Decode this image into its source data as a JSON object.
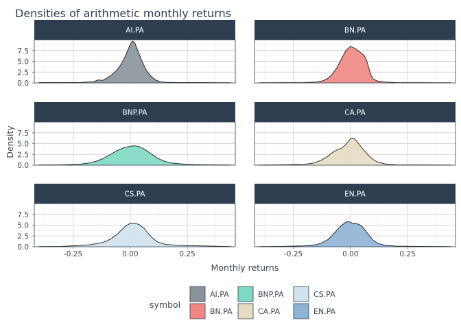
{
  "chart_data": {
    "type": "area",
    "chart_kind": "faceted density",
    "title": "Densities of arithmetic monthly returns",
    "xlabel": "Monthly returns",
    "ylabel": "Density",
    "xlim": [
      -0.42,
      0.46
    ],
    "ylim": [
      0,
      10
    ],
    "x_ticks": [
      -0.25,
      0.0,
      0.25
    ],
    "x_tick_labels": [
      "-0.25",
      "0.00",
      "0.25"
    ],
    "y_ticks": [
      0.0,
      2.5,
      5.0,
      7.5
    ],
    "y_tick_labels": [
      "0.0",
      "2.5",
      "5.0",
      "7.5"
    ],
    "grid": true,
    "facet_layout": {
      "rows": 3,
      "cols": 2
    },
    "legend": {
      "title": "symbol",
      "position": "bottom",
      "entries": [
        {
          "label": "AI.PA",
          "color": "#8a929b"
        },
        {
          "label": "BN.PA",
          "color": "#f08784"
        },
        {
          "label": "BNP.PA",
          "color": "#7fd8c4"
        },
        {
          "label": "CA.PA",
          "color": "#e6dcc2"
        },
        {
          "label": "CS.PA",
          "color": "#cfe2ed"
        },
        {
          "label": "EN.PA",
          "color": "#8eb3d5"
        }
      ]
    },
    "series": [
      {
        "name": "AI.PA",
        "color": "#8a929b",
        "x": [
          -0.4,
          -0.3,
          -0.22,
          -0.16,
          -0.14,
          -0.12,
          -0.1,
          -0.08,
          -0.06,
          -0.04,
          -0.02,
          0.0,
          0.01,
          0.02,
          0.03,
          0.05,
          0.07,
          0.09,
          0.11,
          0.13,
          0.16,
          0.2,
          0.3,
          0.44
        ],
        "y": [
          0.08,
          0.08,
          0.1,
          0.3,
          0.7,
          0.6,
          1.2,
          1.9,
          2.9,
          4.3,
          6.4,
          8.9,
          9.7,
          9.3,
          7.9,
          5.2,
          3.0,
          1.6,
          0.7,
          0.3,
          0.15,
          0.1,
          0.08,
          0.05
        ]
      },
      {
        "name": "BN.PA",
        "color": "#f08784",
        "x": [
          -0.4,
          -0.3,
          -0.2,
          -0.15,
          -0.12,
          -0.1,
          -0.08,
          -0.06,
          -0.04,
          -0.02,
          0.0,
          0.01,
          0.02,
          0.03,
          0.04,
          0.05,
          0.06,
          0.07,
          0.08,
          0.09,
          0.1,
          0.12,
          0.15,
          0.2,
          0.3,
          0.44
        ],
        "y": [
          0.05,
          0.06,
          0.1,
          0.2,
          0.5,
          1.0,
          2.0,
          3.5,
          5.5,
          7.5,
          8.5,
          8.2,
          8.0,
          7.6,
          7.2,
          6.8,
          6.4,
          5.4,
          3.5,
          1.8,
          0.9,
          0.4,
          0.2,
          0.1,
          0.06,
          0.05
        ]
      },
      {
        "name": "BNP.PA",
        "color": "#7fd8c4",
        "x": [
          -0.4,
          -0.3,
          -0.22,
          -0.18,
          -0.15,
          -0.12,
          -0.09,
          -0.06,
          -0.03,
          0.0,
          0.02,
          0.04,
          0.06,
          0.09,
          0.12,
          0.15,
          0.18,
          0.22,
          0.28,
          0.34,
          0.44
        ],
        "y": [
          0.05,
          0.08,
          0.25,
          0.5,
          0.9,
          1.5,
          2.4,
          3.3,
          4.0,
          4.4,
          4.5,
          4.3,
          3.8,
          2.7,
          1.6,
          0.9,
          0.5,
          0.3,
          0.15,
          0.1,
          0.05
        ]
      },
      {
        "name": "CA.PA",
        "color": "#e6dcc2",
        "x": [
          -0.4,
          -0.3,
          -0.2,
          -0.16,
          -0.13,
          -0.1,
          -0.08,
          -0.06,
          -0.04,
          -0.02,
          0.0,
          0.01,
          0.02,
          0.03,
          0.04,
          0.06,
          0.08,
          0.1,
          0.12,
          0.15,
          0.2,
          0.3,
          0.44
        ],
        "y": [
          0.05,
          0.08,
          0.2,
          0.5,
          1.1,
          2.0,
          2.9,
          3.5,
          3.9,
          4.8,
          6.1,
          6.3,
          6.0,
          5.4,
          4.7,
          3.4,
          2.2,
          1.3,
          0.7,
          0.3,
          0.1,
          0.06,
          0.05
        ]
      },
      {
        "name": "CS.PA",
        "color": "#cfe2ed",
        "x": [
          -0.4,
          -0.3,
          -0.22,
          -0.18,
          -0.15,
          -0.12,
          -0.1,
          -0.08,
          -0.06,
          -0.04,
          -0.02,
          0.0,
          0.02,
          0.04,
          0.06,
          0.08,
          0.1,
          0.12,
          0.15,
          0.2,
          0.25,
          0.3,
          0.36,
          0.44
        ],
        "y": [
          0.05,
          0.08,
          0.3,
          0.45,
          0.7,
          1.0,
          1.4,
          2.0,
          2.8,
          3.8,
          4.8,
          5.4,
          5.5,
          5.1,
          4.3,
          3.0,
          1.9,
          1.1,
          0.6,
          0.35,
          0.25,
          0.2,
          0.15,
          0.05
        ]
      },
      {
        "name": "EN.PA",
        "color": "#8eb3d5",
        "x": [
          -0.4,
          -0.3,
          -0.2,
          -0.16,
          -0.13,
          -0.1,
          -0.08,
          -0.06,
          -0.04,
          -0.02,
          -0.01,
          0.0,
          0.01,
          0.02,
          0.03,
          0.04,
          0.05,
          0.06,
          0.08,
          0.1,
          0.12,
          0.15,
          0.2,
          0.3,
          0.44
        ],
        "y": [
          0.05,
          0.08,
          0.2,
          0.4,
          0.8,
          1.6,
          2.6,
          3.8,
          4.9,
          5.7,
          5.8,
          5.7,
          5.4,
          5.4,
          5.3,
          5.1,
          4.8,
          4.1,
          2.8,
          1.5,
          0.8,
          0.35,
          0.15,
          0.08,
          0.05
        ]
      }
    ]
  }
}
